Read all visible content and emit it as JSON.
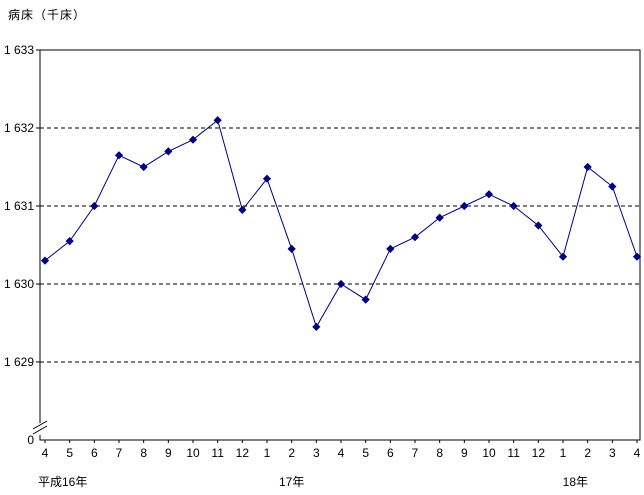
{
  "chart_data": {
    "type": "line",
    "title": "病床（千床）",
    "x_categories": [
      "4",
      "5",
      "6",
      "7",
      "8",
      "9",
      "10",
      "11",
      "12",
      "1",
      "2",
      "3",
      "4",
      "5",
      "6",
      "7",
      "8",
      "9",
      "10",
      "11",
      "12",
      "1",
      "2",
      "3",
      "4"
    ],
    "values": [
      1630.3,
      1630.55,
      1631.0,
      1631.65,
      1631.5,
      1631.7,
      1631.85,
      1632.1,
      1630.95,
      1631.35,
      1630.45,
      1629.45,
      1630.0,
      1629.8,
      1630.45,
      1630.6,
      1630.85,
      1631.0,
      1631.15,
      1631.0,
      1630.75,
      1630.35,
      1631.5,
      1631.25,
      1630.35
    ],
    "y_ticks": [
      1633,
      1632,
      1631,
      1630,
      1629
    ],
    "y_tick_labels": [
      "1 633",
      "1 632",
      "1 631",
      "1 630",
      "1 629"
    ],
    "y_zero_label": "0",
    "era_labels": [
      {
        "label": "平成16年",
        "month_index": 0,
        "align": "start"
      },
      {
        "label": "17年",
        "month_index": 10,
        "align": "middle"
      },
      {
        "label": "18年",
        "month_index": 21.5,
        "align": "middle"
      }
    ],
    "ylim_display": [
      1629,
      1633
    ],
    "axis_break": true,
    "grid": "dashed-horizontal",
    "line_color": "#000080",
    "marker": "diamond",
    "marker_color": "#000080",
    "axis_color": "#000000",
    "grid_color": "#000000"
  }
}
